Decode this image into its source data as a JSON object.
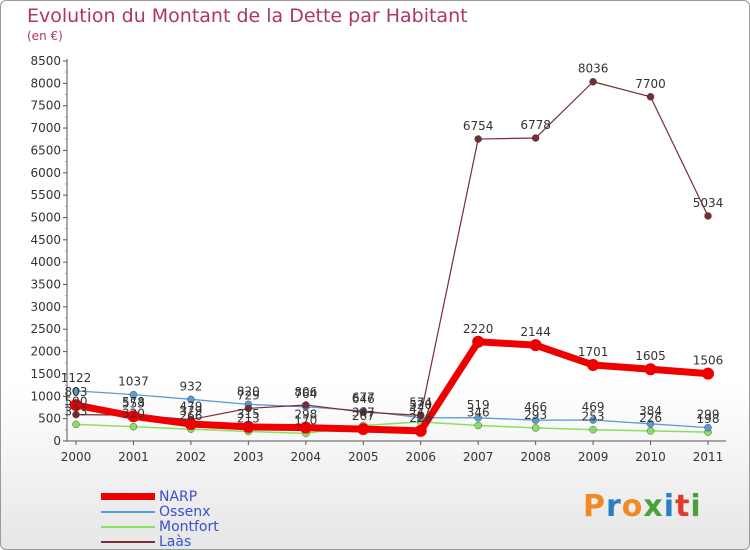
{
  "title": "Evolution du Montant de la Dette par Habitant",
  "subtitle": "(en €)",
  "logo": "Proxiti",
  "chart_data": {
    "type": "line",
    "x": [
      "2000",
      "2001",
      "2002",
      "2003",
      "2004",
      "2005",
      "2006",
      "2007",
      "2008",
      "2009",
      "2010",
      "2011"
    ],
    "ylim": [
      0,
      8500
    ],
    "yticks": [
      0,
      500,
      1000,
      1500,
      2000,
      2500,
      3000,
      3500,
      4000,
      4500,
      5000,
      5500,
      6000,
      6500,
      7000,
      7500,
      8000,
      8500
    ],
    "grid": false,
    "legend": "bottom-left",
    "series": [
      {
        "name": "NARP",
        "color": "#ee0000",
        "values": [
          803,
          553,
          379,
          315,
          298,
          267,
          226,
          2220,
          2144,
          1701,
          1605,
          1506
        ]
      },
      {
        "name": "Ossenx",
        "color": "#5b9bd5",
        "values": [
          1122,
          1037,
          932,
          820,
          764,
          677,
          520,
          519,
          466,
          469,
          384,
          299
        ]
      },
      {
        "name": "Montfort",
        "color": "#88e060",
        "values": [
          373,
          320,
          266,
          213,
          170,
          347,
          427,
          346,
          293,
          253,
          226,
          198
        ]
      },
      {
        "name": "Laàs",
        "color": "#7a2c33",
        "values": [
          590,
          578,
          479,
          729,
          806,
          646,
          574,
          6754,
          6778,
          8036,
          7700,
          5034
        ]
      }
    ]
  }
}
